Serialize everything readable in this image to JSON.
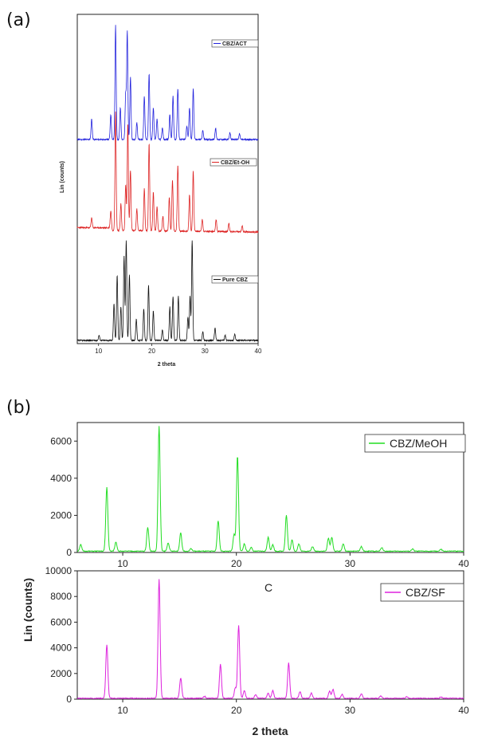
{
  "panel_a": {
    "label": "(a)",
    "chart_data": {
      "type": "line",
      "title": "",
      "xlabel": "2 theta",
      "ylabel": "Lin (counts)",
      "xlim": [
        6,
        40
      ],
      "xticks": [
        "10",
        "20",
        "30",
        "40"
      ],
      "y_tick_labels": "none",
      "legend_placement": "inline-per-trace",
      "series": [
        {
          "name": "CBZ/ACT",
          "color": "#2222dd",
          "peaks": [
            [
              8.7,
              0.18
            ],
            [
              12.3,
              0.22
            ],
            [
              13.2,
              1.0
            ],
            [
              14.1,
              0.28
            ],
            [
              15.1,
              0.4
            ],
            [
              15.4,
              0.95
            ],
            [
              16.0,
              0.55
            ],
            [
              17.2,
              0.15
            ],
            [
              18.6,
              0.38
            ],
            [
              19.5,
              0.58
            ],
            [
              20.3,
              0.28
            ],
            [
              21.0,
              0.18
            ],
            [
              22.0,
              0.1
            ],
            [
              23.4,
              0.22
            ],
            [
              24.0,
              0.38
            ],
            [
              24.9,
              0.45
            ],
            [
              26.6,
              0.12
            ],
            [
              27.1,
              0.28
            ],
            [
              27.8,
              0.45
            ],
            [
              29.6,
              0.08
            ],
            [
              32.0,
              0.1
            ],
            [
              34.7,
              0.06
            ],
            [
              36.5,
              0.05
            ]
          ]
        },
        {
          "name": "CBZ/Et-OH",
          "color": "#dd2222",
          "peaks": [
            [
              8.7,
              0.08
            ],
            [
              12.3,
              0.14
            ],
            [
              13.2,
              0.98
            ],
            [
              14.2,
              0.22
            ],
            [
              15.1,
              0.38
            ],
            [
              15.5,
              0.88
            ],
            [
              16.0,
              0.5
            ],
            [
              17.2,
              0.18
            ],
            [
              18.6,
              0.35
            ],
            [
              19.5,
              0.72
            ],
            [
              20.3,
              0.32
            ],
            [
              21.0,
              0.2
            ],
            [
              22.1,
              0.12
            ],
            [
              23.3,
              0.28
            ],
            [
              23.9,
              0.42
            ],
            [
              24.9,
              0.55
            ],
            [
              27.1,
              0.3
            ],
            [
              27.8,
              0.5
            ],
            [
              29.5,
              0.1
            ],
            [
              32.1,
              0.1
            ],
            [
              34.5,
              0.07
            ],
            [
              37.0,
              0.05
            ]
          ]
        },
        {
          "name": "Pure CBZ",
          "color": "#111111",
          "peaks": [
            [
              10.1,
              0.05
            ],
            [
              12.9,
              0.35
            ],
            [
              13.5,
              0.62
            ],
            [
              14.2,
              0.32
            ],
            [
              14.8,
              0.8
            ],
            [
              15.2,
              0.95
            ],
            [
              15.8,
              0.62
            ],
            [
              17.1,
              0.2
            ],
            [
              18.5,
              0.3
            ],
            [
              19.4,
              0.52
            ],
            [
              20.3,
              0.28
            ],
            [
              22.0,
              0.1
            ],
            [
              23.4,
              0.32
            ],
            [
              24.0,
              0.42
            ],
            [
              25.0,
              0.42
            ],
            [
              26.8,
              0.22
            ],
            [
              27.2,
              0.42
            ],
            [
              27.6,
              0.95
            ],
            [
              29.6,
              0.08
            ],
            [
              31.9,
              0.12
            ],
            [
              33.8,
              0.05
            ],
            [
              35.6,
              0.06
            ]
          ]
        }
      ]
    }
  },
  "panel_b": {
    "label": "(b)",
    "ylabel": "Lin (counts)",
    "xlabel": "2 theta",
    "annotation": "C",
    "chart_data": [
      {
        "type": "line",
        "title": "",
        "xlim": [
          6,
          40
        ],
        "ylim": [
          0,
          7000
        ],
        "xticks": [
          "10",
          "20",
          "30",
          "40"
        ],
        "yticks": [
          "0",
          "2000",
          "4000",
          "6000"
        ],
        "legend_placement": "top-right",
        "series": [
          {
            "name": "CBZ/MeOH",
            "color": "#22dd22",
            "peaks": [
              [
                6.3,
                350
              ],
              [
                8.6,
                3450
              ],
              [
                9.4,
                500
              ],
              [
                12.2,
                1300
              ],
              [
                13.2,
                6750
              ],
              [
                14.0,
                450
              ],
              [
                15.1,
                1000
              ],
              [
                16.0,
                150
              ],
              [
                18.4,
                1650
              ],
              [
                19.8,
                900
              ],
              [
                20.1,
                5150
              ],
              [
                20.7,
                400
              ],
              [
                21.3,
                200
              ],
              [
                22.8,
                750
              ],
              [
                23.2,
                350
              ],
              [
                24.4,
                1950
              ],
              [
                24.9,
                600
              ],
              [
                25.5,
                400
              ],
              [
                26.7,
                250
              ],
              [
                28.1,
                700
              ],
              [
                28.4,
                750
              ],
              [
                29.4,
                400
              ],
              [
                31.0,
                250
              ],
              [
                32.8,
                200
              ],
              [
                35.5,
                120
              ],
              [
                38.0,
                100
              ]
            ]
          }
        ]
      },
      {
        "type": "line",
        "title": "",
        "xlim": [
          6,
          40
        ],
        "ylim": [
          0,
          10000
        ],
        "xticks": [
          "10",
          "20",
          "30",
          "40"
        ],
        "yticks": [
          "0",
          "2000",
          "4000",
          "6000",
          "8000",
          "10000"
        ],
        "legend_placement": "top-right",
        "series": [
          {
            "name": "CBZ/SF",
            "color": "#dd22dd",
            "peaks": [
              [
                8.6,
                4150
              ],
              [
                13.2,
                9300
              ],
              [
                15.1,
                1600
              ],
              [
                17.2,
                150
              ],
              [
                18.6,
                2650
              ],
              [
                19.9,
                800
              ],
              [
                20.2,
                5700
              ],
              [
                20.7,
                600
              ],
              [
                21.7,
                300
              ],
              [
                22.8,
                400
              ],
              [
                23.2,
                600
              ],
              [
                24.6,
                2750
              ],
              [
                25.6,
                500
              ],
              [
                26.6,
                400
              ],
              [
                28.2,
                550
              ],
              [
                28.5,
                700
              ],
              [
                29.3,
                300
              ],
              [
                31.0,
                350
              ],
              [
                32.7,
                200
              ],
              [
                35.0,
                120
              ],
              [
                38.0,
                100
              ]
            ]
          }
        ]
      }
    ]
  }
}
